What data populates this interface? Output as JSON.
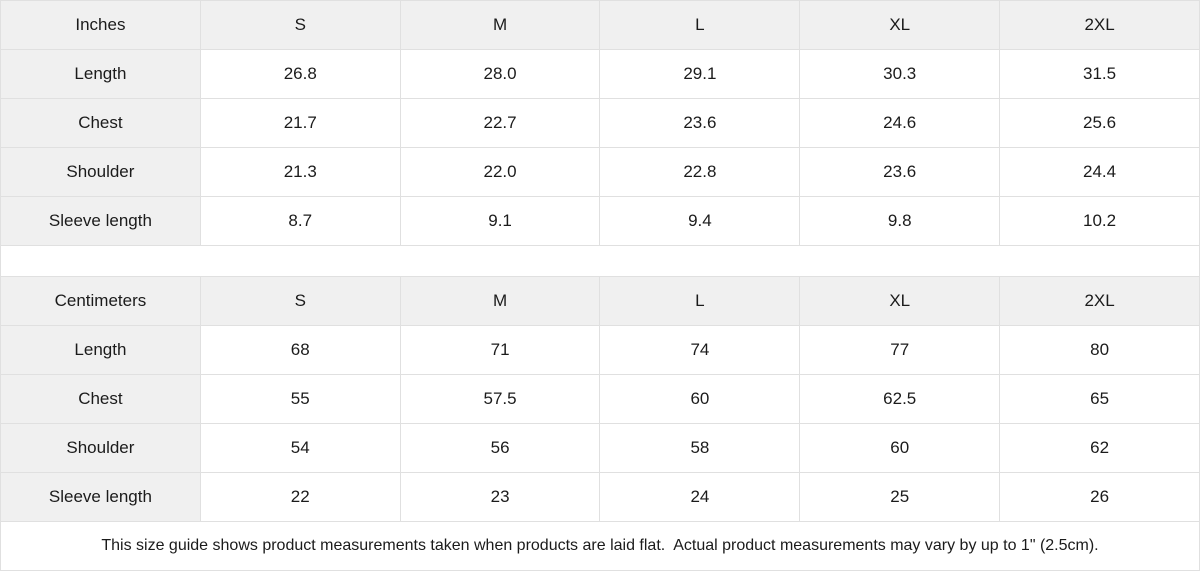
{
  "chart_data": [
    {
      "type": "table",
      "title": "Inches",
      "columns": [
        "Inches",
        "S",
        "M",
        "L",
        "XL",
        "2XL"
      ],
      "rows": [
        {
          "label": "Length",
          "values": [
            "26.8",
            "28.0",
            "29.1",
            "30.3",
            "31.5"
          ]
        },
        {
          "label": "Chest",
          "values": [
            "21.7",
            "22.7",
            "23.6",
            "24.6",
            "25.6"
          ]
        },
        {
          "label": "Shoulder",
          "values": [
            "21.3",
            "22.0",
            "22.8",
            "23.6",
            "24.4"
          ]
        },
        {
          "label": "Sleeve length",
          "values": [
            "8.7",
            "9.1",
            "9.4",
            "9.8",
            "10.2"
          ]
        }
      ]
    },
    {
      "type": "table",
      "title": "Centimeters",
      "columns": [
        "Centimeters",
        "S",
        "M",
        "L",
        "XL",
        "2XL"
      ],
      "rows": [
        {
          "label": "Length",
          "values": [
            "68",
            "71",
            "74",
            "77",
            "80"
          ]
        },
        {
          "label": "Chest",
          "values": [
            "55",
            "57.5",
            "60",
            "62.5",
            "65"
          ]
        },
        {
          "label": "Shoulder",
          "values": [
            "54",
            "56",
            "58",
            "60",
            "62"
          ]
        },
        {
          "label": "Sleeve length",
          "values": [
            "22",
            "23",
            "24",
            "25",
            "26"
          ]
        }
      ]
    }
  ],
  "footer_note": "This size guide shows product measurements taken when products are laid flat.  Actual product measurements may vary by up to 1\" (2.5cm).",
  "colors": {
    "header_bg": "#f0f0f0",
    "border": "#e0e0e0",
    "text": "#1b1b1b",
    "bg": "#ffffff"
  }
}
